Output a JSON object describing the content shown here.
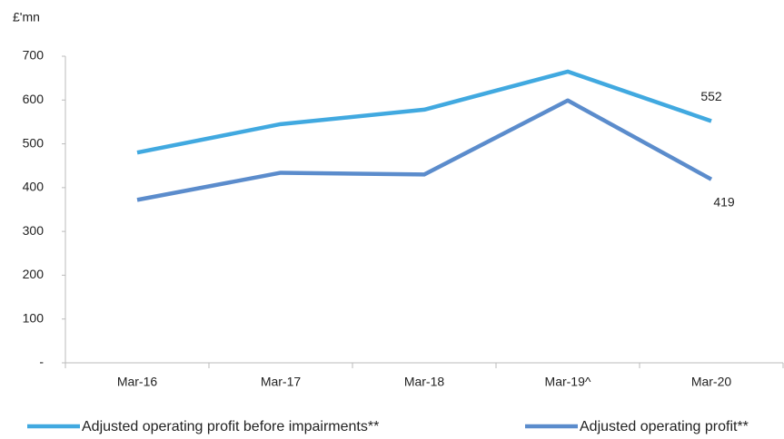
{
  "chart_data": {
    "type": "line",
    "y_label": "£'mn",
    "categories": [
      "Mar-16",
      "Mar-17",
      "Mar-18",
      "Mar-19^",
      "Mar-20"
    ],
    "series": [
      {
        "name": "Adjusted operating profit before impairments**",
        "color": "#41a9e0",
        "values": [
          480,
          545,
          578,
          665,
          552
        ]
      },
      {
        "name": "Adjusted operating profit**",
        "color": "#5b8ccc",
        "values": [
          372,
          434,
          430,
          599,
          419
        ]
      }
    ],
    "data_labels": "last",
    "ylim": [
      0,
      700
    ],
    "yticks": [
      {
        "value": 0,
        "label": "-"
      },
      100,
      200,
      300,
      400,
      500,
      600,
      700
    ],
    "grid": false,
    "legend": "bottom"
  }
}
